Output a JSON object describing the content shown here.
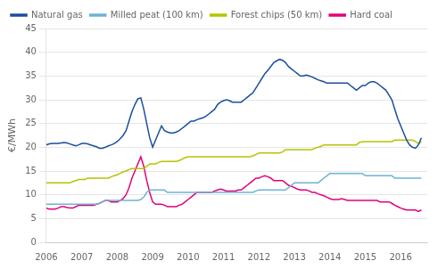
{
  "chart_data": {
    "type": "line",
    "ylabel": "€/MWh",
    "x": [
      2006.0,
      2006.083,
      2006.167,
      2006.25,
      2006.333,
      2006.417,
      2006.5,
      2006.583,
      2006.667,
      2006.75,
      2006.833,
      2006.917,
      2007.0,
      2007.083,
      2007.167,
      2007.25,
      2007.333,
      2007.417,
      2007.5,
      2007.583,
      2007.667,
      2007.75,
      2007.833,
      2007.917,
      2008.0,
      2008.083,
      2008.167,
      2008.25,
      2008.333,
      2008.417,
      2008.5,
      2008.583,
      2008.667,
      2008.75,
      2008.833,
      2008.917,
      2009.0,
      2009.083,
      2009.167,
      2009.25,
      2009.333,
      2009.417,
      2009.5,
      2009.583,
      2009.667,
      2009.75,
      2009.833,
      2009.917,
      2010.0,
      2010.083,
      2010.167,
      2010.25,
      2010.333,
      2010.417,
      2010.5,
      2010.583,
      2010.667,
      2010.75,
      2010.833,
      2010.917,
      2011.0,
      2011.083,
      2011.167,
      2011.25,
      2011.333,
      2011.417,
      2011.5,
      2011.583,
      2011.667,
      2011.75,
      2011.833,
      2011.917,
      2012.0,
      2012.083,
      2012.167,
      2012.25,
      2012.333,
      2012.417,
      2012.5,
      2012.583,
      2012.667,
      2012.75,
      2012.833,
      2012.917,
      2013.0,
      2013.083,
      2013.167,
      2013.25,
      2013.333,
      2013.417,
      2013.5,
      2013.583,
      2013.667,
      2013.75,
      2013.833,
      2013.917,
      2014.0,
      2014.083,
      2014.167,
      2014.25,
      2014.333,
      2014.417,
      2014.5,
      2014.583,
      2014.667,
      2014.75,
      2014.833,
      2014.917,
      2015.0,
      2015.083,
      2015.167,
      2015.25,
      2015.333,
      2015.417,
      2015.5,
      2015.583,
      2015.667,
      2015.75,
      2015.833,
      2015.917,
      2016.0,
      2016.083,
      2016.167,
      2016.25,
      2016.333,
      2016.417,
      2016.5,
      2016.583
    ],
    "series": [
      {
        "name": "Natural gas",
        "color": "#1a4f9c",
        "values": [
          20.5,
          20.7,
          20.8,
          20.8,
          20.8,
          20.9,
          21.0,
          20.9,
          20.7,
          20.5,
          20.3,
          20.5,
          20.8,
          20.8,
          20.7,
          20.5,
          20.3,
          20.1,
          19.8,
          19.8,
          20.0,
          20.3,
          20.5,
          20.8,
          21.2,
          21.8,
          22.5,
          23.5,
          25.5,
          27.5,
          29.0,
          30.2,
          30.4,
          28.0,
          25.0,
          22.0,
          20.0,
          21.5,
          23.0,
          24.5,
          23.5,
          23.2,
          23.0,
          23.0,
          23.2,
          23.5,
          24.0,
          24.5,
          25.0,
          25.5,
          25.5,
          25.8,
          26.0,
          26.2,
          26.5,
          27.0,
          27.5,
          28.0,
          29.0,
          29.5,
          29.8,
          30.0,
          29.8,
          29.5,
          29.5,
          29.5,
          29.5,
          30.0,
          30.5,
          31.0,
          31.5,
          32.5,
          33.5,
          34.5,
          35.5,
          36.2,
          37.0,
          37.8,
          38.2,
          38.5,
          38.3,
          37.8,
          37.0,
          36.5,
          36.0,
          35.5,
          35.0,
          35.0,
          35.2,
          35.0,
          34.8,
          34.5,
          34.2,
          34.0,
          33.8,
          33.5,
          33.5,
          33.5,
          33.5,
          33.5,
          33.5,
          33.5,
          33.5,
          33.0,
          32.5,
          32.0,
          32.5,
          33.0,
          33.0,
          33.5,
          33.8,
          33.8,
          33.5,
          33.0,
          32.5,
          32.0,
          31.0,
          30.0,
          28.0,
          26.0,
          24.5,
          23.0,
          21.5,
          20.5,
          20.0,
          19.8,
          20.5,
          22.0
        ]
      },
      {
        "name": "Milled peat (100 km)",
        "color": "#6db3d4",
        "values": [
          8.0,
          8.0,
          8.0,
          8.0,
          8.0,
          8.0,
          8.0,
          8.0,
          8.0,
          8.0,
          8.0,
          8.0,
          8.0,
          8.0,
          8.0,
          8.0,
          8.0,
          8.0,
          8.2,
          8.5,
          8.8,
          8.8,
          8.8,
          8.8,
          8.8,
          8.8,
          8.8,
          8.8,
          8.8,
          8.8,
          8.8,
          8.8,
          9.0,
          9.5,
          10.5,
          11.0,
          11.0,
          11.0,
          11.0,
          11.0,
          11.0,
          10.5,
          10.5,
          10.5,
          10.5,
          10.5,
          10.5,
          10.5,
          10.5,
          10.5,
          10.5,
          10.5,
          10.5,
          10.5,
          10.5,
          10.5,
          10.5,
          10.5,
          10.5,
          10.5,
          10.5,
          10.5,
          10.5,
          10.5,
          10.5,
          10.5,
          10.5,
          10.5,
          10.5,
          10.5,
          10.5,
          10.8,
          11.0,
          11.0,
          11.0,
          11.0,
          11.0,
          11.0,
          11.0,
          11.0,
          11.0,
          11.0,
          11.5,
          12.0,
          12.5,
          12.5,
          12.5,
          12.5,
          12.5,
          12.5,
          12.5,
          12.5,
          12.5,
          13.0,
          13.5,
          14.0,
          14.5,
          14.5,
          14.5,
          14.5,
          14.5,
          14.5,
          14.5,
          14.5,
          14.5,
          14.5,
          14.5,
          14.5,
          14.0,
          14.0,
          14.0,
          14.0,
          14.0,
          14.0,
          14.0,
          14.0,
          14.0,
          14.0,
          13.5,
          13.5,
          13.5,
          13.5,
          13.5,
          13.5,
          13.5,
          13.5,
          13.5,
          13.5
        ]
      },
      {
        "name": "Forest chips (50 km)",
        "color": "#b5c400",
        "values": [
          12.5,
          12.5,
          12.5,
          12.5,
          12.5,
          12.5,
          12.5,
          12.5,
          12.5,
          12.8,
          13.0,
          13.2,
          13.2,
          13.2,
          13.5,
          13.5,
          13.5,
          13.5,
          13.5,
          13.5,
          13.5,
          13.5,
          13.8,
          14.0,
          14.2,
          14.5,
          14.8,
          15.0,
          15.3,
          15.5,
          15.5,
          15.5,
          15.5,
          15.5,
          16.0,
          16.5,
          16.5,
          16.5,
          16.8,
          17.0,
          17.0,
          17.0,
          17.0,
          17.0,
          17.0,
          17.2,
          17.5,
          17.8,
          18.0,
          18.0,
          18.0,
          18.0,
          18.0,
          18.0,
          18.0,
          18.0,
          18.0,
          18.0,
          18.0,
          18.0,
          18.0,
          18.0,
          18.0,
          18.0,
          18.0,
          18.0,
          18.0,
          18.0,
          18.0,
          18.0,
          18.2,
          18.5,
          18.8,
          18.8,
          18.8,
          18.8,
          18.8,
          18.8,
          18.8,
          18.8,
          19.0,
          19.5,
          19.5,
          19.5,
          19.5,
          19.5,
          19.5,
          19.5,
          19.5,
          19.5,
          19.5,
          19.8,
          20.0,
          20.2,
          20.5,
          20.5,
          20.5,
          20.5,
          20.5,
          20.5,
          20.5,
          20.5,
          20.5,
          20.5,
          20.5,
          20.5,
          21.0,
          21.2,
          21.2,
          21.2,
          21.2,
          21.2,
          21.2,
          21.2,
          21.2,
          21.2,
          21.2,
          21.2,
          21.5,
          21.5,
          21.5,
          21.5,
          21.5,
          21.5,
          21.5,
          21.2,
          20.8,
          21.2
        ]
      },
      {
        "name": "Hard coal",
        "color": "#e2007a",
        "values": [
          7.2,
          7.0,
          7.0,
          7.0,
          7.2,
          7.5,
          7.5,
          7.3,
          7.2,
          7.2,
          7.5,
          7.8,
          7.8,
          7.8,
          7.8,
          7.8,
          7.8,
          8.0,
          8.2,
          8.5,
          8.8,
          8.8,
          8.5,
          8.5,
          8.5,
          8.8,
          9.2,
          10.0,
          11.5,
          13.5,
          15.0,
          16.5,
          18.0,
          16.0,
          13.0,
          10.5,
          8.5,
          8.0,
          8.0,
          8.0,
          7.8,
          7.5,
          7.5,
          7.5,
          7.5,
          7.8,
          8.0,
          8.5,
          9.0,
          9.5,
          10.0,
          10.5,
          10.5,
          10.5,
          10.5,
          10.5,
          10.5,
          10.8,
          11.0,
          11.2,
          11.0,
          10.8,
          10.8,
          10.8,
          10.8,
          11.0,
          11.0,
          11.5,
          12.0,
          12.5,
          13.0,
          13.5,
          13.5,
          13.8,
          14.0,
          13.8,
          13.5,
          13.0,
          13.0,
          13.0,
          13.0,
          12.5,
          12.0,
          11.8,
          11.5,
          11.2,
          11.0,
          11.0,
          11.0,
          10.8,
          10.5,
          10.5,
          10.2,
          10.0,
          9.8,
          9.5,
          9.2,
          9.0,
          9.0,
          9.0,
          9.2,
          9.0,
          8.8,
          8.8,
          8.8,
          8.8,
          8.8,
          8.8,
          8.8,
          8.8,
          8.8,
          8.8,
          8.8,
          8.5,
          8.5,
          8.5,
          8.5,
          8.2,
          7.8,
          7.5,
          7.2,
          7.0,
          6.8,
          6.8,
          6.8,
          6.8,
          6.5,
          6.8
        ]
      }
    ],
    "xlim": [
      2006.0,
      2016.75
    ],
    "xticks": [
      2006,
      2007,
      2008,
      2009,
      2010,
      2011,
      2012,
      2013,
      2014,
      2015,
      2016
    ],
    "ylim": [
      0,
      45
    ],
    "yticks": [
      0,
      5,
      10,
      15,
      20,
      25,
      30,
      35,
      40,
      45
    ],
    "grid": "y",
    "legend": "upper left"
  }
}
